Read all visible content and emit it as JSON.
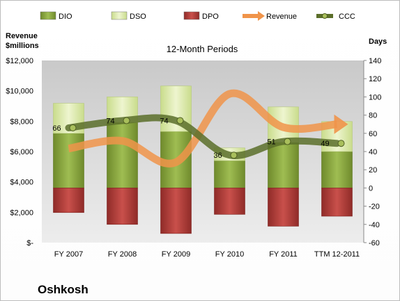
{
  "chart_data": {
    "type": "bar",
    "title": "12-Month Periods",
    "company": "Oshkosh",
    "left_axis_label": [
      "Revenue",
      "$millions"
    ],
    "right_axis_label": "Days",
    "categories": [
      "FY 2007",
      "FY 2008",
      "FY 2009",
      "FY 2010",
      "FY 2011",
      "TTM 12-2011"
    ],
    "left_axis": {
      "ylim": [
        0,
        12000
      ],
      "ticks": [
        {
          "value": 0,
          "label": "$-"
        },
        {
          "value": 2000,
          "label": "$2,000"
        },
        {
          "value": 4000,
          "label": "$4,000"
        },
        {
          "value": 6000,
          "label": "$6,000"
        },
        {
          "value": 8000,
          "label": "$8,000"
        },
        {
          "value": 10000,
          "label": "$10,000"
        },
        {
          "value": 12000,
          "label": "$12,000"
        }
      ]
    },
    "right_axis": {
      "ylim": [
        -60,
        140
      ],
      "ticks": [
        -60,
        -40,
        -20,
        0,
        20,
        40,
        60,
        80,
        100,
        120,
        140
      ]
    },
    "legend": [
      {
        "name": "DIO",
        "color": "#8aa83e",
        "marker": "bar"
      },
      {
        "name": "DSO",
        "color": "#d9e8a8",
        "marker": "bar"
      },
      {
        "name": "DPO",
        "color": "#b8403c",
        "marker": "bar"
      },
      {
        "name": "Revenue",
        "color": "#f0944a",
        "marker": "arrow"
      },
      {
        "name": "CCC",
        "color": "#5b6e2a",
        "marker": "line-dot"
      }
    ],
    "series": [
      {
        "name": "DIO",
        "axis": "right",
        "values": [
          60,
          72,
          62,
          30,
          50,
          40
        ]
      },
      {
        "name": "DSO",
        "axis": "right",
        "values": [
          33,
          28,
          50,
          14,
          39,
          33
        ]
      },
      {
        "name": "DPO",
        "axis": "right",
        "values": [
          -27,
          -40,
          -50,
          -29,
          -42,
          -31
        ]
      },
      {
        "name": "Revenue",
        "axis": "left",
        "values": [
          6200,
          6700,
          5300,
          9800,
          7600,
          7800
        ]
      },
      {
        "name": "CCC",
        "axis": "right",
        "values": [
          66,
          74,
          74,
          36,
          51,
          49
        ]
      }
    ],
    "ccc_labels": [
      "66",
      "74",
      "74",
      "36",
      "51",
      "49"
    ],
    "grid": false,
    "legend_position": "top"
  }
}
